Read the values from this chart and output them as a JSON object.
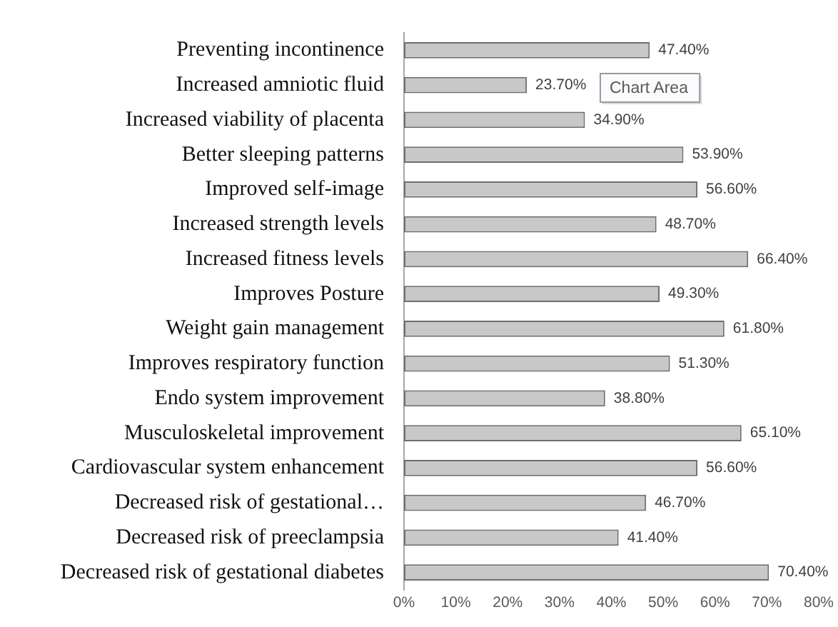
{
  "chart_data": {
    "type": "bar",
    "orientation": "horizontal",
    "categories": [
      "Preventing incontinence",
      "Increased amniotic fluid",
      "Increased viability of placenta",
      "Better sleeping patterns",
      "Improved self-image",
      "Increased strength levels",
      "Increased fitness levels",
      "Improves Posture",
      "Weight gain management",
      "Improves respiratory function",
      "Endo system improvement",
      "Musculoskeletal improvement",
      "Cardiovascular system enhancement",
      "Decreased risk of gestational…",
      "Decreased risk of preeclampsia",
      "Decreased risk of gestational diabetes"
    ],
    "values": [
      47.4,
      23.7,
      34.9,
      53.9,
      56.6,
      48.7,
      66.4,
      49.3,
      61.8,
      51.3,
      38.8,
      65.1,
      56.6,
      46.7,
      41.4,
      70.4
    ],
    "value_labels": [
      "47.40%",
      "23.70%",
      "34.90%",
      "53.90%",
      "56.60%",
      "48.70%",
      "66.40%",
      "49.30%",
      "61.80%",
      "51.30%",
      "38.80%",
      "65.10%",
      "56.60%",
      "46.70%",
      "41.40%",
      "70.40%"
    ],
    "color": "#c8c8c8",
    "xlim": [
      0,
      80
    ],
    "xticks": [
      {
        "value": 0,
        "label": "0%"
      },
      {
        "value": 10,
        "label": "10%"
      },
      {
        "value": 20,
        "label": "20%"
      },
      {
        "value": 30,
        "label": "30%"
      },
      {
        "value": 40,
        "label": "40%"
      },
      {
        "value": 50,
        "label": "50%"
      },
      {
        "value": 60,
        "label": "60%"
      },
      {
        "value": 70,
        "label": "70%"
      },
      {
        "value": 80,
        "label": "80%"
      }
    ],
    "annotations": [
      "Chart Area"
    ]
  }
}
